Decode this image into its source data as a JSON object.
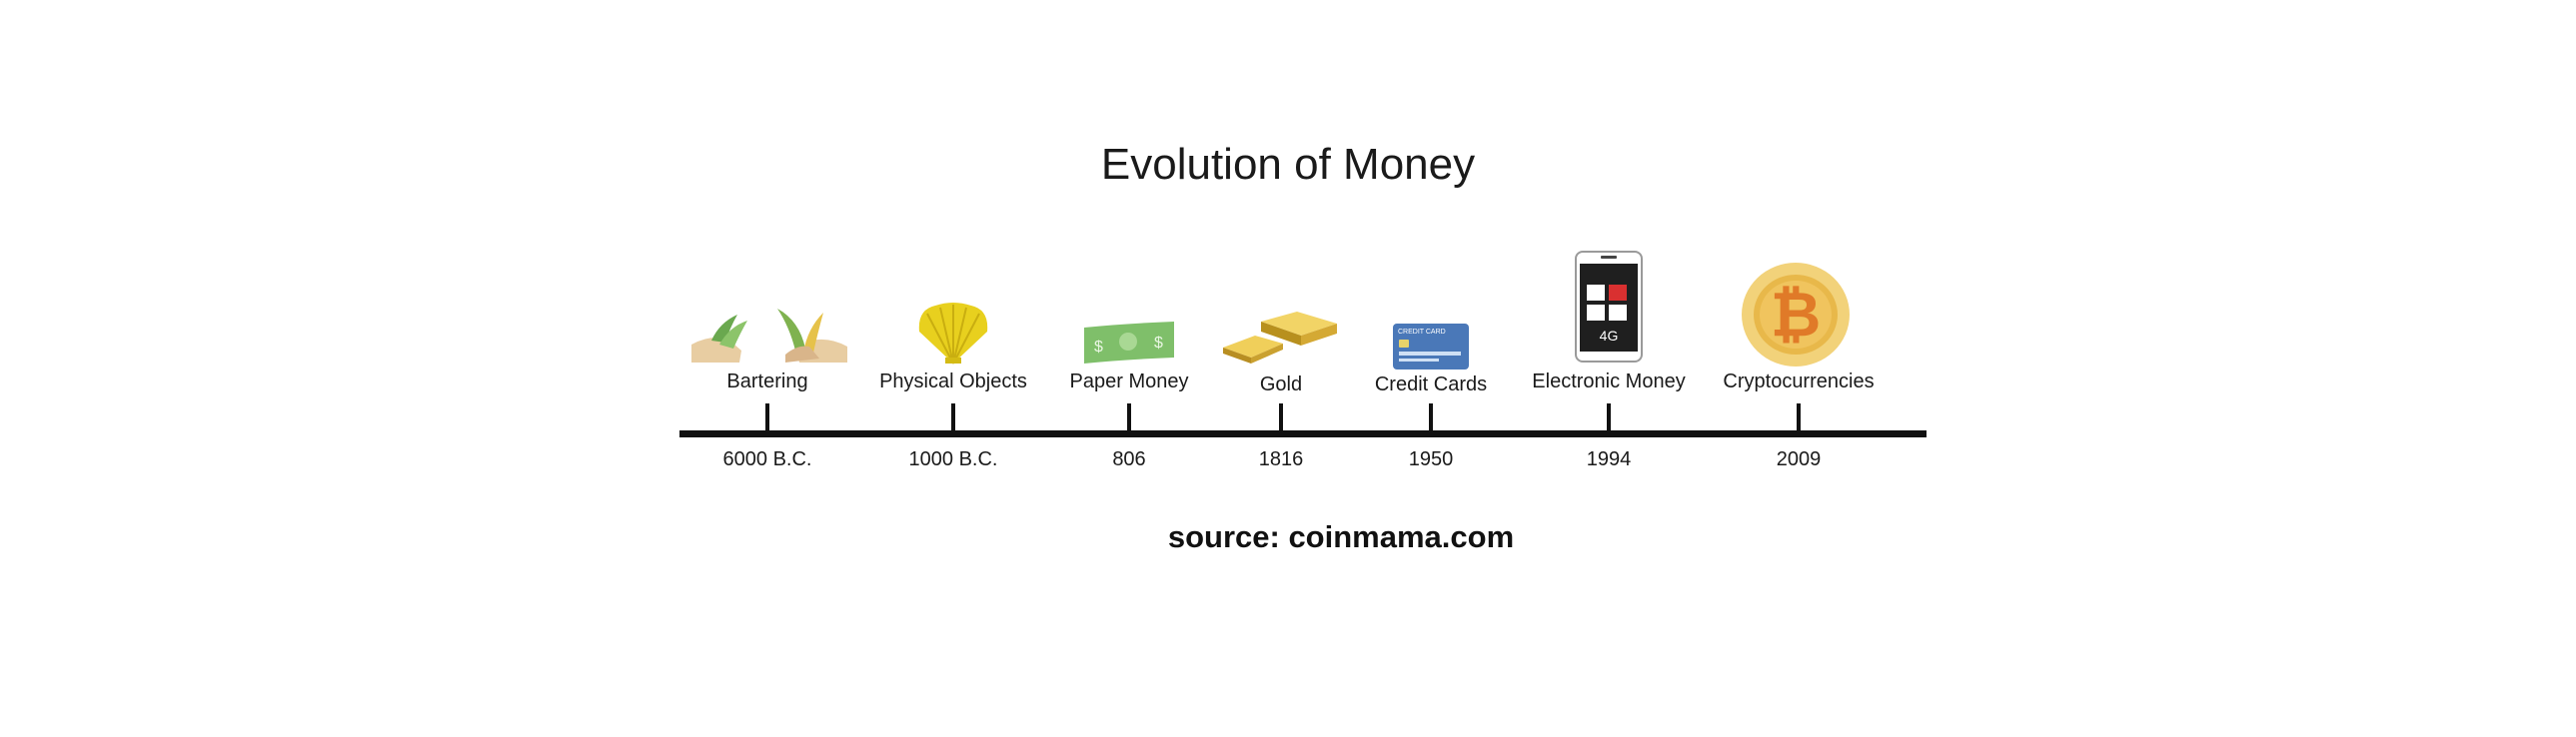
{
  "title": "Evolution of Money",
  "source": "source: coinmama.com",
  "icons": {
    "bartering": "barter-hands-icon",
    "physical_objects": "seashell-icon",
    "paper_money": "banknote-icon",
    "gold": "gold-bars-icon",
    "credit_cards": "credit-card-icon",
    "electronic_money": "smartphone-icon",
    "cryptocurrencies": "bitcoin-icon"
  },
  "card_text": "CREDIT CARD",
  "phone_text": "4G",
  "bitcoin_symbol": "₿",
  "events": [
    {
      "label": "Bartering",
      "year": "6000 B.C."
    },
    {
      "label": "Physical Objects",
      "year": "1000 B.C."
    },
    {
      "label": "Paper Money",
      "year": "806"
    },
    {
      "label": "Gold",
      "year": "1816"
    },
    {
      "label": "Credit Cards",
      "year": "1950"
    },
    {
      "label": "Electronic Money",
      "year": "1994"
    },
    {
      "label": "Cryptocurrencies",
      "year": "2009"
    }
  ],
  "colors": {
    "line": "#111111",
    "gold": "#d9b23a",
    "shell": "#e8d01e",
    "money_green": "#7fbf6a",
    "card_blue": "#4a78b8",
    "bitcoin_orange": "#e07a28",
    "bitcoin_ring": "#f2d27a"
  }
}
